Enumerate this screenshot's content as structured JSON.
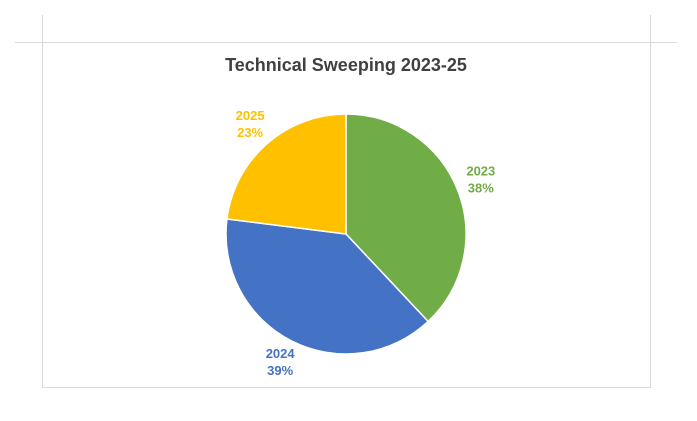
{
  "chart_data": {
    "type": "pie",
    "title": "Technical Sweeping 2023-25",
    "categories": [
      "2023",
      "2024",
      "2025"
    ],
    "values": [
      38,
      39,
      23
    ],
    "value_labels": [
      "38%",
      "39%",
      "23%"
    ],
    "colors": [
      "#70ad47",
      "#4472c4",
      "#ffc000"
    ]
  }
}
